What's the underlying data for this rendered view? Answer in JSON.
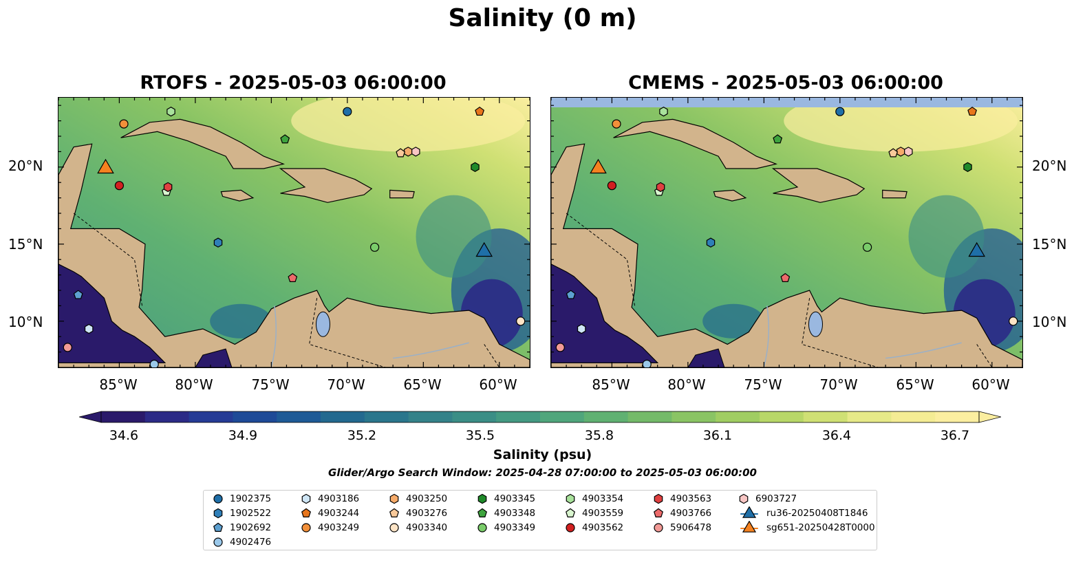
{
  "figure": {
    "title": "Salinity (0 m)",
    "colorbar_label": "Salinity (psu)",
    "search_window_note": "Glider/Argo Search Window: 2025-04-28 07:00:00 to 2025-05-03 06:00:00"
  },
  "panels": [
    {
      "title": "RTOFS - 2025-05-03 06:00:00"
    },
    {
      "title": "CMEMS - 2025-05-03 06:00:00"
    }
  ],
  "axes": {
    "lon_ticks": [
      "85°W",
      "80°W",
      "75°W",
      "70°W",
      "65°W",
      "60°W"
    ],
    "lat_ticks": [
      "20°N",
      "15°N",
      "10°N"
    ],
    "lon_range": [
      -89,
      -58
    ],
    "lat_range": [
      7,
      24.5
    ]
  },
  "colorbar": {
    "ticks": [
      "34.6",
      "34.9",
      "35.2",
      "35.5",
      "35.8",
      "36.1",
      "36.4",
      "36.7"
    ],
    "range": [
      34.6,
      36.7
    ],
    "colors": [
      "#2a1a6a",
      "#2b2a86",
      "#253b95",
      "#1e4a97",
      "#1e5a96",
      "#23698f",
      "#2a768c",
      "#348289",
      "#3b8e86",
      "#449a82",
      "#50a67c",
      "#60b172",
      "#74ba69",
      "#8ac464",
      "#a0cd62",
      "#b8d768",
      "#cfe074",
      "#e6e988",
      "#f4ec94",
      "#fbeea0"
    ],
    "extend": "both"
  },
  "legend": {
    "items": [
      {
        "label": "1902375",
        "marker": "circle",
        "color": "#1f6fa8"
      },
      {
        "label": "1902522",
        "marker": "hexagon",
        "color": "#2f7fb8"
      },
      {
        "label": "1902692",
        "marker": "pentagon",
        "color": "#5da0d0"
      },
      {
        "label": "4902476",
        "marker": "circle",
        "color": "#9ac8ea"
      },
      {
        "label": "4903186",
        "marker": "hexagon",
        "color": "#cfe6f6"
      },
      {
        "label": "4903244",
        "marker": "pentagon",
        "color": "#e8761c"
      },
      {
        "label": "4903249",
        "marker": "circle",
        "color": "#f2903a"
      },
      {
        "label": "4903250",
        "marker": "hexagon",
        "color": "#f6ab6a"
      },
      {
        "label": "4903276",
        "marker": "pentagon",
        "color": "#f8c99a"
      },
      {
        "label": "4903340",
        "marker": "circle",
        "color": "#fde4c6"
      },
      {
        "label": "4903345",
        "marker": "hexagon",
        "color": "#1f8a2a"
      },
      {
        "label": "4903348",
        "marker": "pentagon",
        "color": "#3ea43e"
      },
      {
        "label": "4903349",
        "marker": "circle",
        "color": "#7acc6a"
      },
      {
        "label": "4903354",
        "marker": "hexagon",
        "color": "#a9e29c"
      },
      {
        "label": "4903559",
        "marker": "pentagon",
        "color": "#d9f5cf"
      },
      {
        "label": "4903562",
        "marker": "circle",
        "color": "#d22020"
      },
      {
        "label": "4903563",
        "marker": "hexagon",
        "color": "#e04040"
      },
      {
        "label": "4903766",
        "marker": "pentagon",
        "color": "#ec6a6a"
      },
      {
        "label": "5906478",
        "marker": "circle",
        "color": "#f29a96"
      },
      {
        "label": "6903727",
        "marker": "hexagon",
        "color": "#f8c6c4"
      },
      {
        "label": "ru36-20250408T1846",
        "marker": "triangle-line",
        "color": "#1f6fa8"
      },
      {
        "label": "sg651-20250428T0000",
        "marker": "triangle-line",
        "color": "#f58220"
      }
    ]
  },
  "platforms": [
    {
      "id": "1902375",
      "lon": -70.0,
      "lat": 23.6
    },
    {
      "id": "1902522",
      "lon": -78.5,
      "lat": 15.1
    },
    {
      "id": "1902692",
      "lon": -87.7,
      "lat": 11.7
    },
    {
      "id": "4902476",
      "lon": -82.7,
      "lat": 7.2
    },
    {
      "id": "4903186",
      "lon": -87.0,
      "lat": 9.5
    },
    {
      "id": "4903244",
      "lon": -61.3,
      "lat": 23.6
    },
    {
      "id": "4903249",
      "lon": -84.7,
      "lat": 22.8
    },
    {
      "id": "4903250",
      "lon": -66.0,
      "lat": 21.0
    },
    {
      "id": "4903276",
      "lon": -66.5,
      "lat": 20.9
    },
    {
      "id": "4903340",
      "lon": -58.6,
      "lat": 10.0
    },
    {
      "id": "4903345",
      "lon": -61.6,
      "lat": 20.0
    },
    {
      "id": "4903348",
      "lon": -74.1,
      "lat": 21.8
    },
    {
      "id": "4903349",
      "lon": -68.2,
      "lat": 14.8
    },
    {
      "id": "4903354",
      "lon": -81.6,
      "lat": 23.6
    },
    {
      "id": "4903559",
      "lon": -81.9,
      "lat": 18.4
    },
    {
      "id": "4903562",
      "lon": -85.0,
      "lat": 18.8
    },
    {
      "id": "4903563",
      "lon": -81.8,
      "lat": 18.7
    },
    {
      "id": "4903766",
      "lon": -73.6,
      "lat": 12.8
    },
    {
      "id": "5906478",
      "lon": -88.4,
      "lat": 8.3
    },
    {
      "id": "6903727",
      "lon": -65.5,
      "lat": 21.0
    },
    {
      "id": "ru36-20250408T1846",
      "lon": -61.0,
      "lat": 14.5
    },
    {
      "id": "sg651-20250428T0000",
      "lon": -85.9,
      "lat": 19.9
    }
  ]
}
